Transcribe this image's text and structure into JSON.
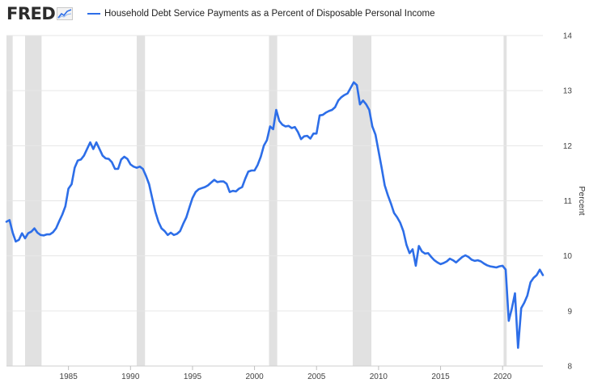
{
  "branding": {
    "logo_text": "FRED",
    "logo_icon": "trend-chart-icon"
  },
  "colors": {
    "series": "#2d6ee8",
    "recession": "#e1e1e1",
    "grid": "#e6e6e6",
    "text": "#444444"
  },
  "chart_data": {
    "type": "line",
    "title": "",
    "xlabel": "",
    "ylabel": "Percent",
    "xlim": [
      1980.0,
      2023.25
    ],
    "ylim": [
      8,
      14
    ],
    "x_ticks": [
      1985,
      1990,
      1995,
      2000,
      2005,
      2010,
      2015,
      2020
    ],
    "y_ticks": [
      8,
      9,
      10,
      11,
      12,
      13,
      14
    ],
    "grid": "horizontal",
    "legend_position": "top-left",
    "recessions": [
      [
        1980.0,
        1980.5
      ],
      [
        1981.5,
        1982.83
      ],
      [
        1990.5,
        1991.17
      ],
      [
        2001.17,
        2001.83
      ],
      [
        2007.92,
        2009.42
      ],
      [
        2020.08,
        2020.33
      ]
    ],
    "series": [
      {
        "name": "Household Debt Service Payments as a Percent of Disposable Personal Income",
        "points": [
          [
            1980.0,
            10.62
          ],
          [
            1980.25,
            10.65
          ],
          [
            1980.5,
            10.42
          ],
          [
            1980.75,
            10.26
          ],
          [
            1981.0,
            10.29
          ],
          [
            1981.25,
            10.41
          ],
          [
            1981.5,
            10.32
          ],
          [
            1981.75,
            10.41
          ],
          [
            1982.0,
            10.44
          ],
          [
            1982.25,
            10.5
          ],
          [
            1982.5,
            10.42
          ],
          [
            1982.75,
            10.38
          ],
          [
            1983.0,
            10.37
          ],
          [
            1983.25,
            10.39
          ],
          [
            1983.5,
            10.39
          ],
          [
            1983.75,
            10.43
          ],
          [
            1984.0,
            10.5
          ],
          [
            1984.25,
            10.63
          ],
          [
            1984.5,
            10.75
          ],
          [
            1984.75,
            10.9
          ],
          [
            1985.0,
            11.22
          ],
          [
            1985.25,
            11.3
          ],
          [
            1985.5,
            11.6
          ],
          [
            1985.75,
            11.73
          ],
          [
            1986.0,
            11.75
          ],
          [
            1986.25,
            11.82
          ],
          [
            1986.5,
            11.94
          ],
          [
            1986.75,
            12.06
          ],
          [
            1987.0,
            11.94
          ],
          [
            1987.25,
            12.06
          ],
          [
            1987.5,
            11.94
          ],
          [
            1987.75,
            11.82
          ],
          [
            1988.0,
            11.77
          ],
          [
            1988.25,
            11.76
          ],
          [
            1988.5,
            11.7
          ],
          [
            1988.75,
            11.58
          ],
          [
            1989.0,
            11.58
          ],
          [
            1989.25,
            11.75
          ],
          [
            1989.5,
            11.8
          ],
          [
            1989.75,
            11.76
          ],
          [
            1990.0,
            11.66
          ],
          [
            1990.25,
            11.62
          ],
          [
            1990.5,
            11.6
          ],
          [
            1990.75,
            11.62
          ],
          [
            1991.0,
            11.58
          ],
          [
            1991.25,
            11.45
          ],
          [
            1991.5,
            11.3
          ],
          [
            1991.75,
            11.05
          ],
          [
            1992.0,
            10.8
          ],
          [
            1992.25,
            10.62
          ],
          [
            1992.5,
            10.5
          ],
          [
            1992.75,
            10.45
          ],
          [
            1993.0,
            10.38
          ],
          [
            1993.25,
            10.42
          ],
          [
            1993.5,
            10.38
          ],
          [
            1993.75,
            10.4
          ],
          [
            1994.0,
            10.45
          ],
          [
            1994.25,
            10.58
          ],
          [
            1994.5,
            10.7
          ],
          [
            1994.75,
            10.88
          ],
          [
            1995.0,
            11.05
          ],
          [
            1995.25,
            11.16
          ],
          [
            1995.5,
            11.21
          ],
          [
            1995.75,
            11.23
          ],
          [
            1996.0,
            11.25
          ],
          [
            1996.25,
            11.28
          ],
          [
            1996.5,
            11.33
          ],
          [
            1996.75,
            11.38
          ],
          [
            1997.0,
            11.34
          ],
          [
            1997.25,
            11.35
          ],
          [
            1997.5,
            11.35
          ],
          [
            1997.75,
            11.31
          ],
          [
            1998.0,
            11.16
          ],
          [
            1998.25,
            11.18
          ],
          [
            1998.5,
            11.17
          ],
          [
            1998.75,
            11.22
          ],
          [
            1999.0,
            11.25
          ],
          [
            1999.25,
            11.4
          ],
          [
            1999.5,
            11.53
          ],
          [
            1999.75,
            11.55
          ],
          [
            2000.0,
            11.55
          ],
          [
            2000.25,
            11.65
          ],
          [
            2000.5,
            11.8
          ],
          [
            2000.75,
            12.0
          ],
          [
            2001.0,
            12.1
          ],
          [
            2001.25,
            12.35
          ],
          [
            2001.5,
            12.3
          ],
          [
            2001.75,
            12.65
          ],
          [
            2002.0,
            12.45
          ],
          [
            2002.25,
            12.38
          ],
          [
            2002.5,
            12.35
          ],
          [
            2002.75,
            12.36
          ],
          [
            2003.0,
            12.32
          ],
          [
            2003.25,
            12.34
          ],
          [
            2003.5,
            12.25
          ],
          [
            2003.75,
            12.12
          ],
          [
            2004.0,
            12.17
          ],
          [
            2004.25,
            12.18
          ],
          [
            2004.5,
            12.13
          ],
          [
            2004.75,
            12.22
          ],
          [
            2005.0,
            12.22
          ],
          [
            2005.25,
            12.55
          ],
          [
            2005.5,
            12.56
          ],
          [
            2005.75,
            12.6
          ],
          [
            2006.0,
            12.63
          ],
          [
            2006.25,
            12.65
          ],
          [
            2006.5,
            12.7
          ],
          [
            2006.75,
            12.82
          ],
          [
            2007.0,
            12.88
          ],
          [
            2007.25,
            12.92
          ],
          [
            2007.5,
            12.95
          ],
          [
            2007.75,
            13.05
          ],
          [
            2008.0,
            13.15
          ],
          [
            2008.25,
            13.1
          ],
          [
            2008.5,
            12.75
          ],
          [
            2008.75,
            12.82
          ],
          [
            2009.0,
            12.75
          ],
          [
            2009.25,
            12.65
          ],
          [
            2009.5,
            12.35
          ],
          [
            2009.75,
            12.2
          ],
          [
            2010.0,
            11.9
          ],
          [
            2010.25,
            11.6
          ],
          [
            2010.5,
            11.28
          ],
          [
            2010.75,
            11.1
          ],
          [
            2011.0,
            10.95
          ],
          [
            2011.25,
            10.78
          ],
          [
            2011.5,
            10.7
          ],
          [
            2011.75,
            10.6
          ],
          [
            2012.0,
            10.45
          ],
          [
            2012.25,
            10.2
          ],
          [
            2012.5,
            10.05
          ],
          [
            2012.75,
            10.12
          ],
          [
            2013.0,
            9.82
          ],
          [
            2013.25,
            10.18
          ],
          [
            2013.5,
            10.08
          ],
          [
            2013.75,
            10.04
          ],
          [
            2014.0,
            10.05
          ],
          [
            2014.25,
            9.98
          ],
          [
            2014.5,
            9.92
          ],
          [
            2014.75,
            9.88
          ],
          [
            2015.0,
            9.85
          ],
          [
            2015.25,
            9.87
          ],
          [
            2015.5,
            9.9
          ],
          [
            2015.75,
            9.95
          ],
          [
            2016.0,
            9.92
          ],
          [
            2016.25,
            9.88
          ],
          [
            2016.5,
            9.93
          ],
          [
            2016.75,
            9.98
          ],
          [
            2017.0,
            10.01
          ],
          [
            2017.25,
            9.98
          ],
          [
            2017.5,
            9.93
          ],
          [
            2017.75,
            9.91
          ],
          [
            2018.0,
            9.92
          ],
          [
            2018.25,
            9.9
          ],
          [
            2018.5,
            9.86
          ],
          [
            2018.75,
            9.83
          ],
          [
            2019.0,
            9.81
          ],
          [
            2019.25,
            9.8
          ],
          [
            2019.5,
            9.79
          ],
          [
            2019.75,
            9.81
          ],
          [
            2020.0,
            9.82
          ],
          [
            2020.25,
            9.75
          ],
          [
            2020.5,
            8.82
          ],
          [
            2020.75,
            9.05
          ],
          [
            2021.0,
            9.32
          ],
          [
            2021.25,
            8.33
          ],
          [
            2021.5,
            9.05
          ],
          [
            2021.75,
            9.15
          ],
          [
            2022.0,
            9.28
          ],
          [
            2022.25,
            9.52
          ],
          [
            2022.5,
            9.6
          ],
          [
            2022.75,
            9.65
          ],
          [
            2023.0,
            9.75
          ],
          [
            2023.25,
            9.65
          ]
        ]
      }
    ]
  }
}
